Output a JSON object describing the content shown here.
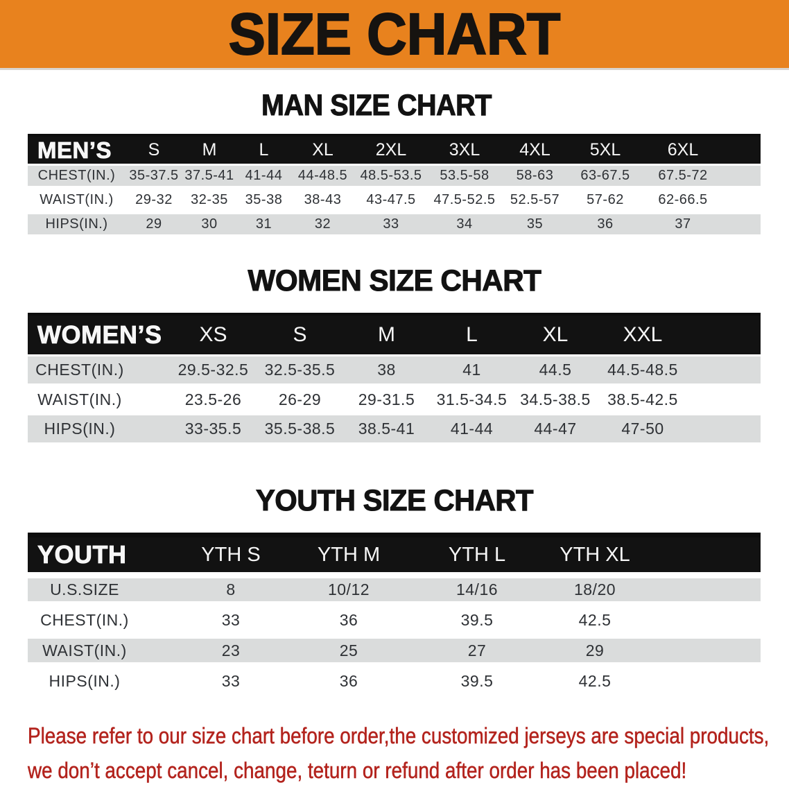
{
  "banner": {
    "title": "SIZE CHART"
  },
  "colors": {
    "banner_bg": "#E8821E",
    "header_bg": "#121212",
    "row_gray": "#DADCDC",
    "text_dark": "#2E3135",
    "footer_red": "#B3231D",
    "heading_black": "#121212"
  },
  "sections": [
    {
      "heading": "MAN SIZE CHART",
      "table": {
        "brand": "MEN’S",
        "columns": [
          "S",
          "M",
          "L",
          "XL",
          "2XL",
          "3XL",
          "4XL",
          "5XL",
          "6XL"
        ],
        "rows": [
          {
            "label": "CHEST(IN.)",
            "values": [
              "35-37.5",
              "37.5-41",
              "41-44",
              "44-48.5",
              "48.5-53.5",
              "53.5-58",
              "58-63",
              "63-67.5",
              "67.5-72"
            ]
          },
          {
            "label": "WAIST(IN.)",
            "values": [
              "29-32",
              "32-35",
              "35-38",
              "38-43",
              "43-47.5",
              "47.5-52.5",
              "52.5-57",
              "57-62",
              "62-66.5"
            ]
          },
          {
            "label": "HIPS(IN.)",
            "values": [
              "29",
              "30",
              "31",
              "32",
              "33",
              "34",
              "35",
              "36",
              "37"
            ]
          }
        ]
      }
    },
    {
      "heading": "WOMEN SIZE CHART",
      "table": {
        "brand": "WOMEN’S",
        "columns": [
          "XS",
          "S",
          "M",
          "L",
          "XL",
          "XXL"
        ],
        "rows": [
          {
            "label": "CHEST(IN.)",
            "values": [
              "29.5-32.5",
              "32.5-35.5",
              "38",
              "41",
              "44.5",
              "44.5-48.5"
            ]
          },
          {
            "label": "WAIST(IN.)",
            "values": [
              "23.5-26",
              "26-29",
              "29-31.5",
              "31.5-34.5",
              "34.5-38.5",
              "38.5-42.5"
            ]
          },
          {
            "label": "HIPS(IN.)",
            "values": [
              "33-35.5",
              "35.5-38.5",
              "38.5-41",
              "41-44",
              "44-47",
              "47-50"
            ]
          }
        ]
      }
    },
    {
      "heading": "YOUTH SIZE CHART",
      "table": {
        "brand": "YOUTH",
        "columns": [
          "YTH S",
          "YTH M",
          "YTH L",
          "YTH XL"
        ],
        "rows": [
          {
            "label": "U.S.SIZE",
            "values": [
              "8",
              "10/12",
              "14/16",
              "18/20"
            ]
          },
          {
            "label": "CHEST(IN.)",
            "values": [
              "33",
              "36",
              "39.5",
              "42.5"
            ]
          },
          {
            "label": "WAIST(IN.)",
            "values": [
              "23",
              "25",
              "27",
              "29"
            ]
          },
          {
            "label": "HIPS(IN.)",
            "values": [
              "33",
              "36",
              "39.5",
              "42.5"
            ]
          }
        ]
      }
    }
  ],
  "footer": {
    "line1": "Please refer to our size chart before order,the customized jerseys are special products,",
    "line2": "we don’t accept cancel, change, teturn or refund after order has been placed!"
  }
}
